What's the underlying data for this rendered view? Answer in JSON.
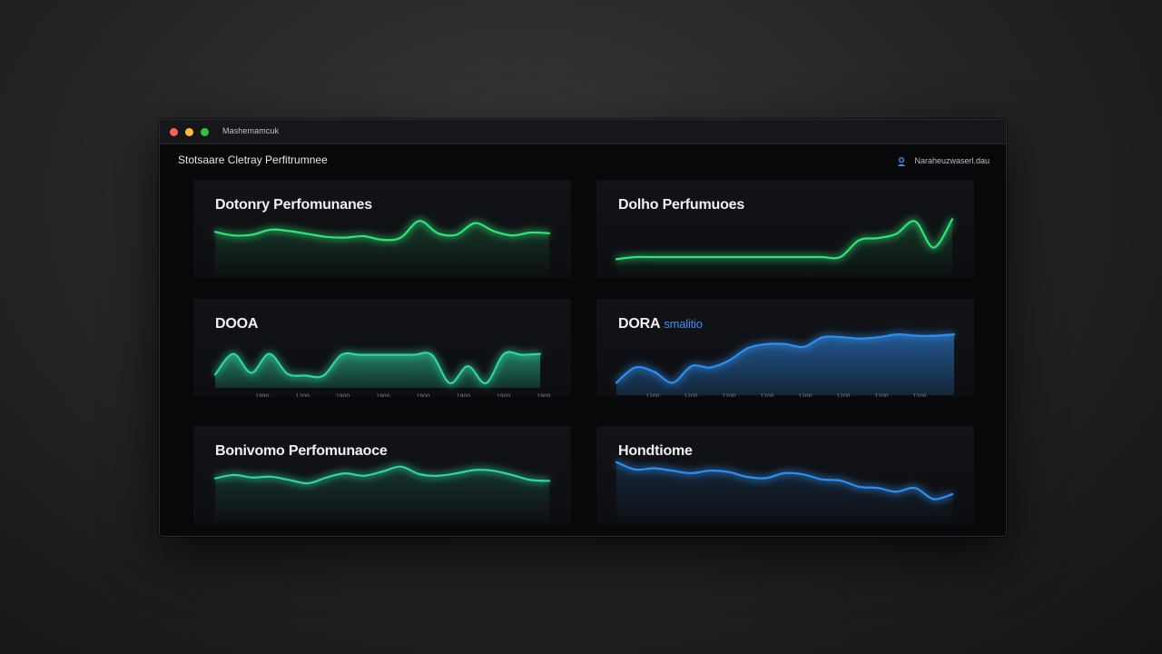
{
  "window": {
    "title": "Mashemamcuk",
    "controls": [
      "close",
      "minimize",
      "maximize"
    ]
  },
  "header": {
    "title": "Stotsaare Cletray Perfitrumnee",
    "user_label": "Naraheuzwaserl.dau",
    "user_icon": "user-icon"
  },
  "colors": {
    "green": "#2ee57a",
    "teal": "#2fd6a0",
    "blue": "#2f8ff0",
    "card": "#111216"
  },
  "cards": [
    {
      "title": "Dotonry Perfomunanes",
      "chart_data": {
        "type": "line",
        "color": "green",
        "x": [
          0,
          1,
          2,
          3,
          4,
          5,
          6,
          7,
          8,
          9,
          10,
          11,
          12,
          13,
          14,
          15,
          16,
          17,
          18
        ],
        "values": [
          52,
          42,
          44,
          58,
          54,
          46,
          38,
          36,
          40,
          30,
          36,
          82,
          48,
          44,
          76,
          54,
          42,
          50,
          48
        ]
      }
    },
    {
      "title": "Dolho Perfumuoes",
      "chart_data": {
        "type": "line",
        "color": "green",
        "x": [
          0,
          1,
          2,
          3,
          4,
          5,
          6,
          7,
          8,
          9,
          10,
          11,
          12,
          13,
          14,
          15,
          16,
          17,
          18
        ],
        "values": [
          8,
          12,
          12,
          12,
          12,
          12,
          12,
          12,
          12,
          12,
          12,
          12,
          12,
          44,
          48,
          56,
          80,
          30,
          84
        ]
      }
    },
    {
      "title": "DOOA",
      "chart_data": {
        "type": "area",
        "color": "teal",
        "x": [
          0,
          1,
          2,
          3,
          4,
          5,
          6,
          7,
          8,
          9,
          10,
          11,
          12,
          13,
          14,
          15,
          16,
          17,
          18
        ],
        "values": [
          28,
          72,
          32,
          72,
          30,
          26,
          26,
          70,
          70,
          70,
          70,
          70,
          70,
          10,
          46,
          10,
          72,
          70,
          72
        ],
        "tick_labels": [
          "1990",
          "1200",
          "1900",
          "1900",
          "1900",
          "1900",
          "1900",
          "1900"
        ]
      }
    },
    {
      "title": "DORA",
      "subtitle": "smalitio",
      "chart_data": {
        "type": "area",
        "color": "blue",
        "x": [
          0,
          1,
          2,
          3,
          4,
          5,
          6,
          7,
          8,
          9,
          10,
          11,
          12,
          13,
          14,
          15,
          16,
          17,
          18
        ],
        "values": [
          18,
          40,
          34,
          18,
          42,
          40,
          50,
          68,
          74,
          74,
          70,
          84,
          84,
          82,
          84,
          88,
          86,
          86,
          88
        ],
        "tick_labels": [
          "1200",
          "1200",
          "1200",
          "1200",
          "1200",
          "1200",
          "1200",
          "1200"
        ]
      }
    },
    {
      "title": "Bonivomo Perfomunaoce",
      "chart_data": {
        "type": "line",
        "color": "teal",
        "x": [
          0,
          1,
          2,
          3,
          4,
          5,
          6,
          7,
          8,
          9,
          10,
          11,
          12,
          13,
          14,
          15,
          16,
          17,
          18
        ],
        "values": [
          40,
          48,
          42,
          44,
          36,
          28,
          42,
          52,
          46,
          56,
          68,
          50,
          46,
          52,
          60,
          58,
          48,
          36,
          34
        ]
      }
    },
    {
      "title": "Hondtiome",
      "chart_data": {
        "type": "line",
        "color": "blue",
        "x": [
          0,
          1,
          2,
          3,
          4,
          5,
          6,
          7,
          8,
          9,
          10,
          11,
          12,
          13,
          14,
          15,
          16,
          17,
          18
        ],
        "values": [
          74,
          62,
          64,
          60,
          56,
          60,
          58,
          50,
          48,
          56,
          54,
          46,
          44,
          34,
          32,
          26,
          32,
          14,
          22
        ]
      }
    }
  ]
}
